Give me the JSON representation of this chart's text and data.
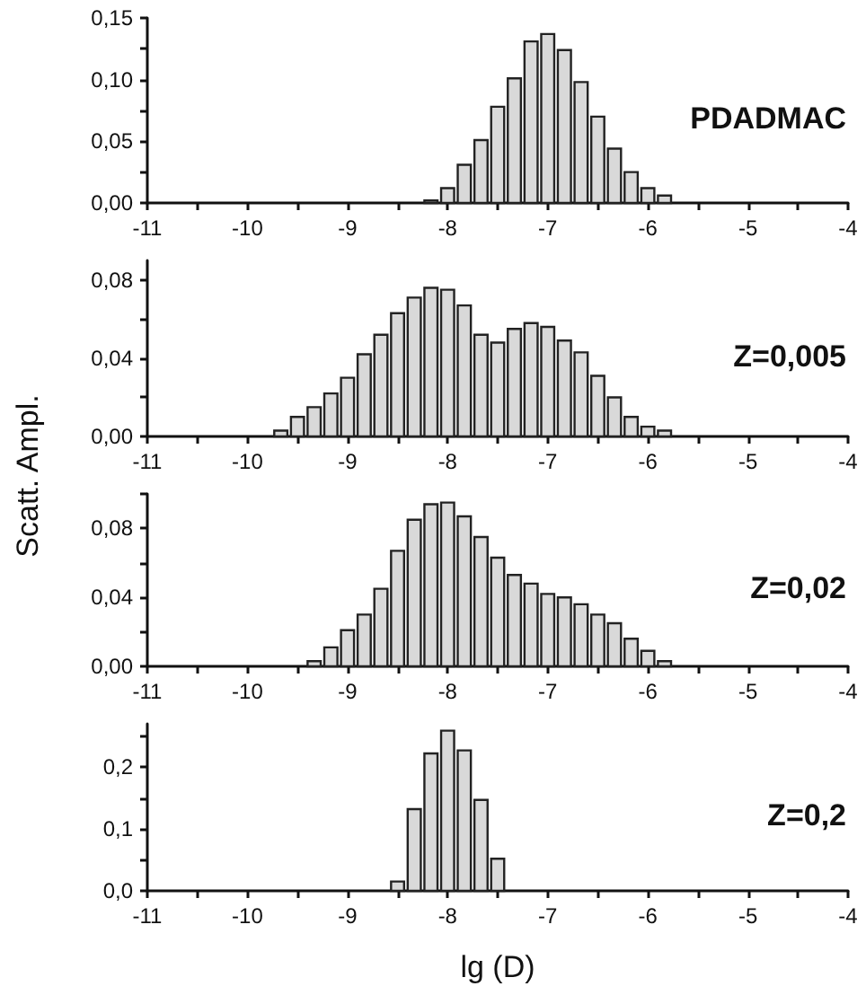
{
  "chart_data": [
    {
      "type": "histogram",
      "title": "PDADMAC",
      "color": "#d9d9d9",
      "bins": [
        -8.25,
        -8.083,
        -7.917,
        -7.75,
        -7.583,
        -7.417,
        -7.25,
        -7.083,
        -6.917,
        -6.75,
        -6.583,
        -6.417,
        -6.25,
        -6.083,
        -5.917,
        -5.75
      ],
      "values": [
        0.002,
        0.012,
        0.031,
        0.051,
        0.078,
        0.101,
        0.131,
        0.137,
        0.124,
        0.098,
        0.07,
        0.044,
        0.025,
        0.012,
        0.006
      ],
      "xlim": [
        -11,
        -4
      ],
      "ylim": [
        0,
        0.15
      ],
      "xticks": [
        -11,
        {
          "value": -10.5,
          "label": null
        },
        -10,
        {
          "value": -9.5,
          "label": null
        },
        -9,
        {
          "value": -8.5,
          "label": null
        },
        -8,
        {
          "value": -7.5,
          "label": null
        },
        -7,
        {
          "value": -6.5,
          "label": null
        },
        -6,
        {
          "value": -5.5,
          "label": null
        },
        -5,
        {
          "value": -4.5,
          "label": null
        },
        -4
      ],
      "yticks": [
        {
          "value": 0,
          "label": "0,00"
        },
        {
          "value": 0.025,
          "label": null
        },
        {
          "value": 0.05,
          "label": "0,05"
        },
        {
          "value": 0.075,
          "label": null
        },
        {
          "value": 0.1,
          "label": "0,10"
        },
        {
          "value": 0.125,
          "label": null
        },
        {
          "value": 0.15,
          "label": "0,15"
        }
      ]
    },
    {
      "type": "histogram",
      "title": "Z=0,005",
      "color": "#d9d9d9",
      "ylabel": "Scatt. Ampl.",
      "bins": [
        -9.75,
        -9.583,
        -9.417,
        -9.25,
        -9.083,
        -8.917,
        -8.75,
        -8.583,
        -8.417,
        -8.25,
        -8.083,
        -7.917,
        -7.75,
        -7.583,
        -7.417,
        -7.25,
        -7.083,
        -6.917,
        -6.75,
        -6.583,
        -6.417,
        -6.25,
        -6.083,
        -5.917,
        -5.75
      ],
      "values": [
        0.003,
        0.01,
        0.015,
        0.022,
        0.03,
        0.042,
        0.052,
        0.063,
        0.071,
        0.076,
        0.075,
        0.067,
        0.052,
        0.048,
        0.055,
        0.058,
        0.056,
        0.049,
        0.043,
        0.031,
        0.02,
        0.01,
        0.005,
        0.003
      ],
      "xlim": [
        -11,
        -4
      ],
      "ylim": [
        0,
        0.09
      ],
      "xticks": [
        -11,
        {
          "value": -10.5,
          "label": null
        },
        -10,
        {
          "value": -9.5,
          "label": null
        },
        -9,
        {
          "value": -8.5,
          "label": null
        },
        -8,
        {
          "value": -7.5,
          "label": null
        },
        -7,
        {
          "value": -6.5,
          "label": null
        },
        -6,
        {
          "value": -5.5,
          "label": null
        },
        -5,
        {
          "value": -4.5,
          "label": null
        },
        -4
      ],
      "yticks": [
        {
          "value": 0,
          "label": "0,00"
        },
        {
          "value": 0.02,
          "label": null
        },
        {
          "value": 0.04,
          "label": "0,04"
        },
        {
          "value": 0.06,
          "label": null
        },
        {
          "value": 0.08,
          "label": "0,08"
        }
      ]
    },
    {
      "type": "histogram",
      "title": "Z=0,02",
      "color": "#d9d9d9",
      "bins": [
        -9.417,
        -9.25,
        -9.083,
        -8.917,
        -8.75,
        -8.583,
        -8.417,
        -8.25,
        -8.083,
        -7.917,
        -7.75,
        -7.583,
        -7.417,
        -7.25,
        -7.083,
        -6.917,
        -6.75,
        -6.583,
        -6.417,
        -6.25,
        -6.083,
        -5.917,
        -5.75
      ],
      "values": [
        0.003,
        0.011,
        0.021,
        0.03,
        0.045,
        0.067,
        0.085,
        0.094,
        0.095,
        0.087,
        0.075,
        0.063,
        0.053,
        0.048,
        0.042,
        0.04,
        0.036,
        0.03,
        0.025,
        0.016,
        0.009,
        0.003
      ],
      "xlim": [
        -11,
        -4
      ],
      "ylim": [
        0,
        0.1
      ],
      "xticks": [
        -11,
        {
          "value": -10.5,
          "label": null
        },
        -10,
        {
          "value": -9.5,
          "label": null
        },
        -9,
        {
          "value": -8.5,
          "label": null
        },
        -8,
        {
          "value": -7.5,
          "label": null
        },
        -7,
        {
          "value": -6.5,
          "label": null
        },
        -6,
        {
          "value": -5.5,
          "label": null
        },
        -5,
        {
          "value": -4.5,
          "label": null
        },
        -4
      ],
      "yticks": [
        {
          "value": 0,
          "label": "0,00"
        },
        {
          "value": 0.02,
          "label": null
        },
        {
          "value": 0.04,
          "label": "0,04"
        },
        {
          "value": 0.06,
          "label": null
        },
        {
          "value": 0.08,
          "label": "0,08"
        },
        {
          "value": 0.1,
          "label": null
        }
      ]
    },
    {
      "type": "histogram",
      "title": "Z=0,2",
      "color": "#d9d9d9",
      "xlabel": "lg (D)",
      "bins": [
        -8.583,
        -8.417,
        -8.25,
        -8.083,
        -7.917,
        -7.75,
        -7.583,
        -7.417
      ],
      "values": [
        0.015,
        0.132,
        0.222,
        0.259,
        0.227,
        0.147,
        0.052
      ],
      "xlim": [
        -11,
        -4
      ],
      "ylim": [
        0,
        0.27
      ],
      "xticks": [
        -11,
        {
          "value": -10.5,
          "label": null
        },
        -10,
        {
          "value": -9.5,
          "label": null
        },
        -9,
        {
          "value": -8.5,
          "label": null
        },
        -8,
        {
          "value": -7.5,
          "label": null
        },
        -7,
        {
          "value": -6.5,
          "label": null
        },
        -6,
        {
          "value": -5.5,
          "label": null
        },
        -5,
        {
          "value": -4.5,
          "label": null
        },
        -4
      ],
      "yticks": [
        {
          "value": 0,
          "label": "0,0"
        },
        {
          "value": 0.05,
          "label": null
        },
        {
          "value": 0.1,
          "label": "0,1"
        },
        {
          "value": 0.15,
          "label": null
        },
        {
          "value": 0.2,
          "label": "0,2"
        },
        {
          "value": 0.25,
          "label": null
        }
      ]
    }
  ]
}
